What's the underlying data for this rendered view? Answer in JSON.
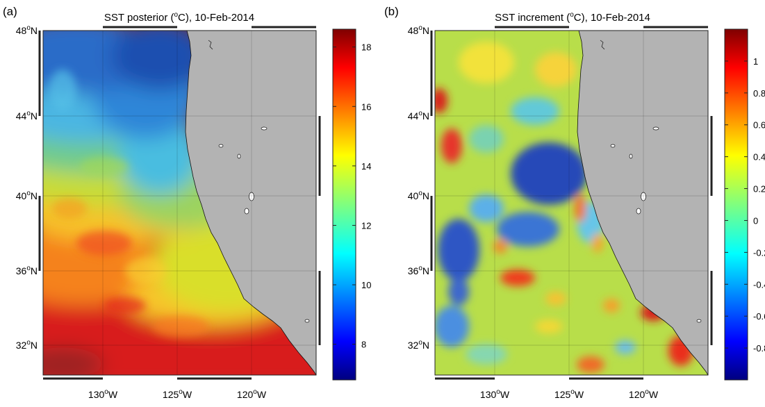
{
  "chart_data": [
    {
      "type": "heatmap",
      "panel_label": "(a)",
      "title_parts": {
        "pre": "SST posterior (",
        "sup": "o",
        "post": "C), 10-Feb-2014"
      },
      "map": {
        "lon_ticks": [
          {
            "deg": "130",
            "hemi": "W"
          },
          {
            "deg": "125",
            "hemi": "W"
          },
          {
            "deg": "120",
            "hemi": "W"
          }
        ],
        "lat_ticks": [
          {
            "deg": "32",
            "hemi": "N"
          },
          {
            "deg": "36",
            "hemi": "N"
          },
          {
            "deg": "40",
            "hemi": "N"
          },
          {
            "deg": "44",
            "hemi": "N"
          },
          {
            "deg": "48",
            "hemi": "N"
          }
        ],
        "land_color": "#b3b3b3",
        "grid": true
      },
      "colorbar": {
        "range": [
          6.8,
          18.6
        ],
        "tick_labels": [
          "8",
          "10",
          "12",
          "14",
          "16",
          "18"
        ],
        "tick_values": [
          8,
          10,
          12,
          14,
          16,
          18
        ],
        "colormap": "jet"
      },
      "field_description_values": [
        {
          "region": "northwest",
          "value": 9.0
        },
        {
          "region": "north near coast",
          "value": 8.0
        },
        {
          "region": "central offshore",
          "value": 13.0
        },
        {
          "region": "central near coast",
          "value": 11.5
        },
        {
          "region": "southwest",
          "value": 16.5
        },
        {
          "region": "south near coast",
          "value": 14.5
        }
      ]
    },
    {
      "type": "heatmap",
      "panel_label": "(b)",
      "title_parts": {
        "pre": "SST increment (",
        "sup": "o",
        "post": "C), 10-Feb-2014"
      },
      "map": {
        "lon_ticks": [
          {
            "deg": "130",
            "hemi": "W"
          },
          {
            "deg": "125",
            "hemi": "W"
          },
          {
            "deg": "120",
            "hemi": "W"
          }
        ],
        "lat_ticks": [
          {
            "deg": "32",
            "hemi": "N"
          },
          {
            "deg": "36",
            "hemi": "N"
          },
          {
            "deg": "40",
            "hemi": "N"
          },
          {
            "deg": "44",
            "hemi": "N"
          },
          {
            "deg": "48",
            "hemi": "N"
          }
        ],
        "land_color": "#b3b3b3",
        "grid": true
      },
      "colorbar": {
        "range": [
          -1.0,
          1.2
        ],
        "tick_labels": [
          "-0.8",
          "-0.6",
          "-0.4",
          "-0.2",
          "0",
          "0.2",
          "0.4",
          "0.6",
          "0.8",
          "1"
        ],
        "tick_values": [
          -0.8,
          -0.6,
          -0.4,
          -0.2,
          0,
          0.2,
          0.4,
          0.6,
          0.8,
          1
        ],
        "colormap": "jet"
      },
      "field_description_values": [
        {
          "region": "central offshore",
          "value": -0.7
        },
        {
          "region": "west offshore",
          "value": -0.5
        },
        {
          "region": "northwest edge",
          "value": 0.9
        },
        {
          "region": "southeast near coast",
          "value": 0.8
        },
        {
          "region": "background",
          "value": 0.1
        }
      ]
    }
  ]
}
